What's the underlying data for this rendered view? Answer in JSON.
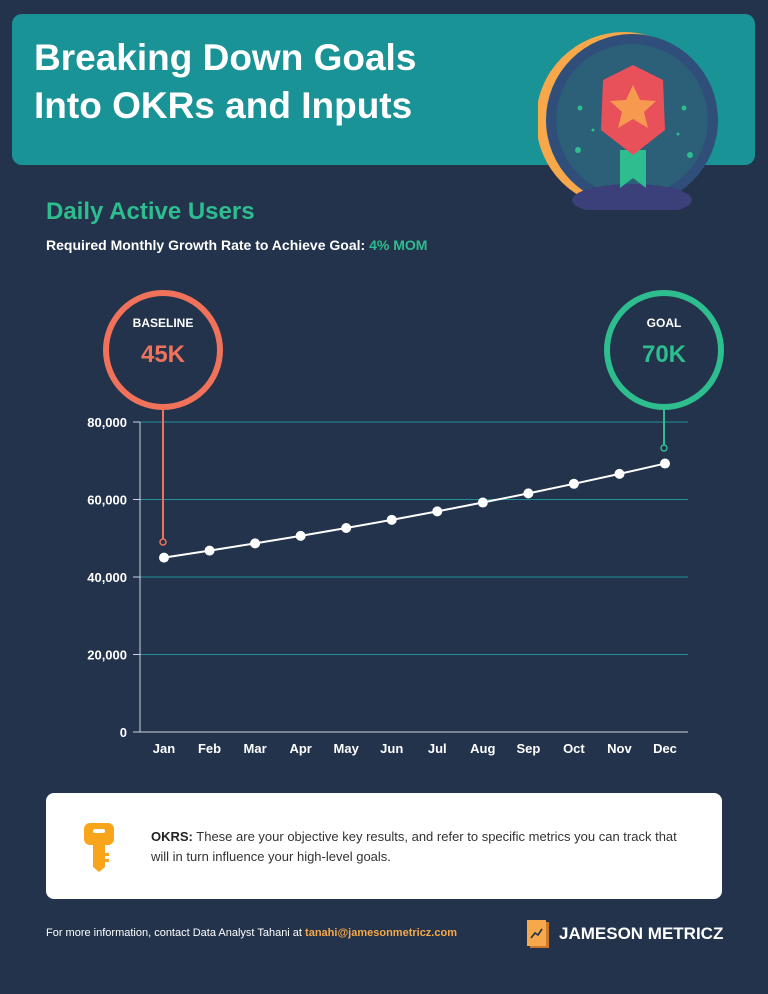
{
  "header": {
    "title_line1": "Breaking Down Goals",
    "title_line2": "Into OKRs and Inputs",
    "badge_icon": "medal-star-icon"
  },
  "section": {
    "title": "Daily Active Users",
    "subtitle_label": "Required Monthly Growth Rate to Achieve Goal:",
    "subtitle_value": "4% MOM"
  },
  "callouts": {
    "baseline": {
      "label": "BASELINE",
      "value": "45K",
      "color": "#f0725a"
    },
    "goal": {
      "label": "GOAL",
      "value": "70K",
      "color": "#2ebd8e"
    }
  },
  "chart_data": {
    "type": "line",
    "categories": [
      "Jan",
      "Feb",
      "Mar",
      "Apr",
      "May",
      "Jun",
      "Jul",
      "Aug",
      "Sep",
      "Oct",
      "Nov",
      "Dec"
    ],
    "values": [
      45000,
      46800,
      48672,
      50619,
      52644,
      54749,
      56939,
      59217,
      61586,
      64049,
      66611,
      69275
    ],
    "ylim": [
      0,
      80000
    ],
    "yticks": [
      "0",
      "20,000",
      "40,000",
      "60,000",
      "80,000"
    ],
    "ytick_values": [
      0,
      20000,
      40000,
      60000,
      80000
    ],
    "grid": true,
    "line_color": "#ffffff",
    "grid_color": "#1e9096"
  },
  "okr": {
    "icon": "key-icon",
    "label": "OKRS:",
    "text": "These are your objective key results, and refer to specific metrics you can track that will in turn influence your high-level goals."
  },
  "footer": {
    "contact_text": "For more information, contact Data Analyst Tahani at",
    "email": "tanahi@jamesonmetricz.com",
    "brand": "JAMESON METRICZ",
    "brand_icon": "trend-chart-icon"
  }
}
